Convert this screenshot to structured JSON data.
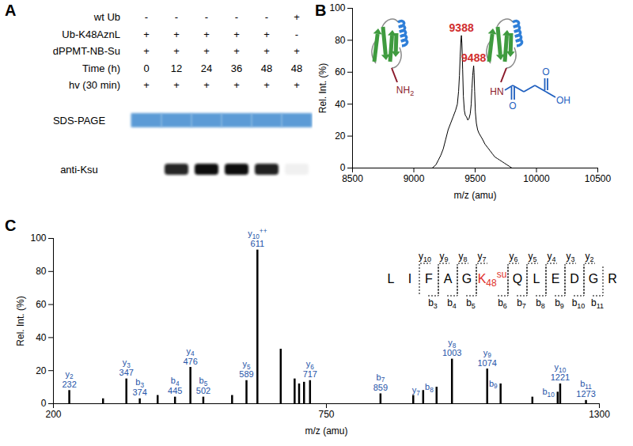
{
  "panel_a": {
    "panel": "A",
    "rows": [
      {
        "label": "wt Ub",
        "values": [
          "-",
          "-",
          "-",
          "-",
          "-",
          "+"
        ]
      },
      {
        "label": "Ub-K48AznL",
        "values": [
          "+",
          "+",
          "+",
          "+",
          "+",
          "-"
        ]
      },
      {
        "label": "dPPMT-NB-Su",
        "values": [
          "+",
          "+",
          "+",
          "+",
          "+",
          "+"
        ]
      },
      {
        "label": "Time (h)",
        "values": [
          0,
          12,
          24,
          36,
          48,
          48
        ]
      },
      {
        "label": "hv (30 min)",
        "values": [
          "+",
          "+",
          "+",
          "+",
          "+",
          "+"
        ]
      }
    ],
    "blots": [
      {
        "label": "SDS-PAGE",
        "color": "#5b9bd6",
        "band_intensity": [
          1,
          1,
          1,
          1,
          1,
          1
        ]
      },
      {
        "label": "anti-Ksu",
        "color": "#111111",
        "band_intensity": [
          0,
          0.9,
          1,
          1,
          0.92,
          0.06
        ]
      }
    ]
  },
  "chart_data": [
    {
      "panel": "B",
      "type": "line",
      "x": [
        9150,
        9180,
        9200,
        9220,
        9240,
        9260,
        9280,
        9300,
        9320,
        9340,
        9355,
        9365,
        9372,
        9378,
        9384,
        9388,
        9392,
        9398,
        9404,
        9412,
        9420,
        9430,
        9440,
        9450,
        9460,
        9468,
        9474,
        9480,
        9486,
        9488,
        9491,
        9496,
        9502,
        9510,
        9520,
        9530,
        9545,
        9560,
        9580,
        9600,
        9620,
        9640,
        9660,
        9680,
        9700,
        9720,
        9740,
        9760,
        9780,
        9800
      ],
      "values": [
        0,
        2,
        5,
        8,
        12,
        18,
        24,
        28,
        32,
        36,
        40,
        48,
        58,
        70,
        80,
        83,
        78,
        62,
        45,
        36,
        33,
        32,
        30,
        31,
        34,
        40,
        50,
        58,
        63,
        64,
        60,
        48,
        35,
        28,
        24,
        22,
        20,
        18,
        15,
        13,
        11,
        9,
        7,
        6,
        5,
        4,
        3,
        2,
        1,
        0
      ],
      "color": "#000000",
      "xlabel": "m/z (amu)",
      "ylabel": "Rel. Int. (%)",
      "xlim": [
        8500,
        10500
      ],
      "xticks": [
        8500,
        9000,
        9500,
        10000,
        10500
      ],
      "ylim": [
        0,
        100
      ],
      "yticks": [
        0,
        20,
        40,
        60,
        80,
        100
      ],
      "peak_labels": {
        "x": [
          9388,
          9488
        ],
        "values": [
          83,
          64
        ],
        "color": "#d12e2e"
      },
      "structure_labels": {
        "unmodified_amine": "NH2",
        "modified_amide": "HN",
        "modified_carbonyls": [
          "O",
          "O"
        ],
        "modified_acid": "OH"
      }
    },
    {
      "panel": "C",
      "type": "bar",
      "x": [
        232,
        300,
        347,
        374,
        410,
        445,
        476,
        502,
        560,
        589,
        611,
        658,
        686,
        695,
        705,
        717,
        859,
        925,
        945,
        972,
        1003,
        1074,
        1101,
        1165,
        1216,
        1221,
        1273
      ],
      "values": [
        8,
        3,
        15,
        3,
        5,
        4,
        22,
        4,
        5,
        14,
        93,
        33,
        15,
        12,
        13,
        14,
        6,
        5,
        8,
        10,
        27,
        21,
        12,
        4,
        7,
        12,
        2
      ],
      "color": "#000000",
      "peak_labels": {
        "ions": [
          "y2",
          null,
          "y3",
          "b3",
          null,
          "b4",
          "y4",
          "b5",
          null,
          "y5",
          "y10++",
          null,
          null,
          null,
          null,
          "y6",
          "b7",
          null,
          "y7",
          "b8",
          "y8",
          "y9",
          "b9",
          null,
          "b10",
          "y10",
          "b11"
        ],
        "mz": [
          232,
          null,
          347,
          374,
          null,
          445,
          476,
          502,
          null,
          589,
          611,
          null,
          null,
          null,
          null,
          717,
          859,
          null,
          null,
          null,
          1003,
          1074,
          null,
          null,
          null,
          1221,
          1273
        ],
        "color": "#2453a8"
      },
      "xlabel": "m/z (amu)",
      "ylabel": "Rel. Int. (%)",
      "xlim": [
        200,
        1300
      ],
      "xticks": [
        200,
        750,
        1300
      ],
      "ylim": [
        0,
        100
      ],
      "yticks": [
        0,
        20,
        40,
        60,
        80,
        100
      ],
      "peptide": {
        "sequence": [
          "L",
          "I",
          "F",
          "A",
          "G",
          "K48su",
          "Q",
          "L",
          "E",
          "D",
          "G",
          "R"
        ],
        "highlight": "K48su",
        "color": "#e0302a",
        "y_ions": [
          {
            "label": "y10",
            "after": 2
          },
          {
            "label": "y9",
            "after": 3
          },
          {
            "label": "y8",
            "after": 4
          },
          {
            "label": "y7",
            "after": 5
          },
          {
            "label": "y6",
            "after": 6
          },
          {
            "label": "y5",
            "after": 7
          },
          {
            "label": "y4",
            "after": 8
          },
          {
            "label": "y3",
            "after": 9
          },
          {
            "label": "y2",
            "after": 10
          }
        ],
        "b_ions": [
          {
            "label": "b3",
            "after": 3
          },
          {
            "label": "b4",
            "after": 4
          },
          {
            "label": "b5",
            "after": 5
          },
          {
            "label": "b6",
            "after": 6
          },
          {
            "label": "b7",
            "after": 7
          },
          {
            "label": "b8",
            "after": 8
          },
          {
            "label": "b9",
            "after": 9
          },
          {
            "label": "b10",
            "after": 10
          },
          {
            "label": "b11",
            "after": 11
          }
        ]
      }
    }
  ]
}
